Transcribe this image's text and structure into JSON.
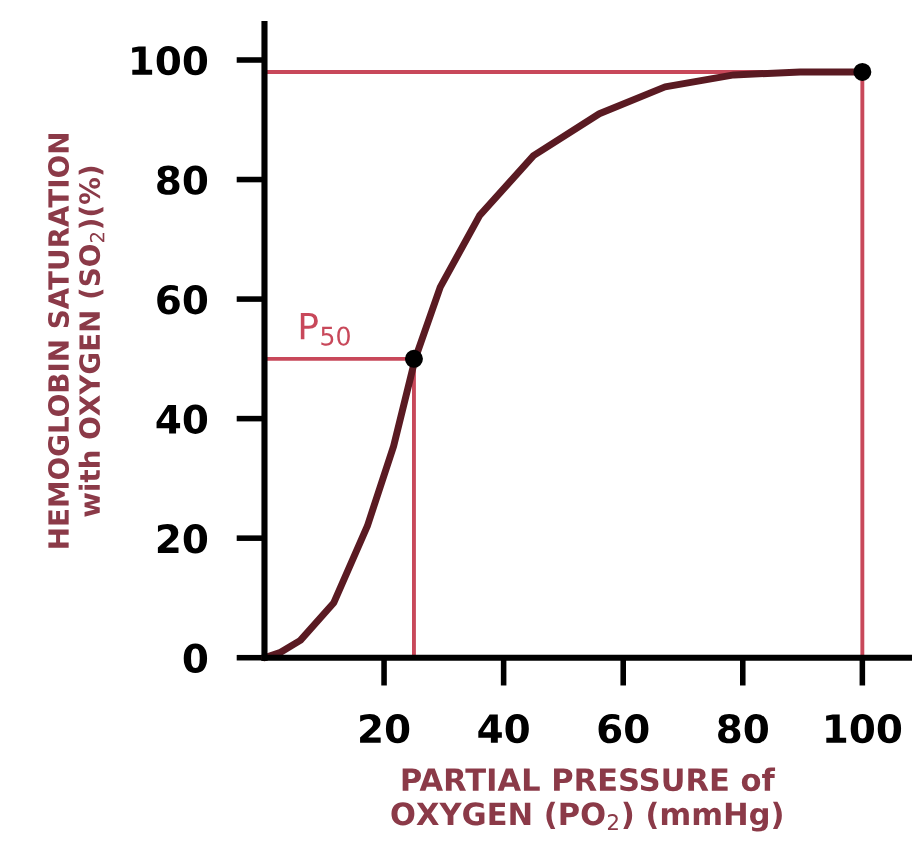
{
  "chart_data": {
    "type": "line",
    "xlabel": "PARTIAL PRESSURE of\nOXYGEN (PO$_{2}$) (mmHg)",
    "ylabel": "HEMOGLOBIN SATURATION\nwith OXYGEN (SO$_{2}$)(%)",
    "xlim": [
      0,
      108
    ],
    "ylim": [
      0,
      106
    ],
    "xticks": [
      20,
      40,
      60,
      80,
      100
    ],
    "yticks": [
      0,
      20,
      40,
      60,
      80,
      100
    ],
    "grid": false,
    "legend": false,
    "series": [
      {
        "color": "#c8485a",
        "x": [
          0,
          25,
          25
        ],
        "values": [
          50,
          50,
          0
        ]
      },
      {
        "color": "#c8485a",
        "x": [
          0,
          100,
          100
        ],
        "values": [
          98,
          98,
          0
        ]
      },
      {
        "color": "#5a1a22",
        "x": [
          0,
          2.7,
          6,
          11.6,
          17.2,
          21.6,
          25.2,
          29.4,
          36,
          45,
          56,
          67,
          78.5,
          89.6,
          100
        ],
        "values": [
          0,
          0.9,
          2.9,
          9.2,
          22,
          35.4,
          50,
          62,
          74,
          84,
          91,
          95.5,
          97.5,
          98,
          98
        ]
      },
      {
        "type": "scatter",
        "color": "#000000",
        "marker": "circle",
        "x": [
          25,
          100
        ],
        "values": [
          50,
          98
        ]
      }
    ],
    "annotations": [
      {
        "text": "P$_{50}$",
        "x": 25,
        "y": 50
      }
    ]
  }
}
